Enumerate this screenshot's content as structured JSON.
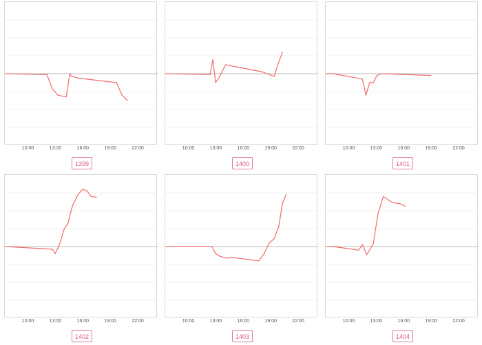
{
  "chart_data": [
    {
      "type": "line",
      "label": "1399",
      "series_color": "#f06a6a",
      "baseline": 0,
      "grid": true,
      "ylim": [
        -4,
        4
      ],
      "x_ticks": [
        "10:00",
        "13:00",
        "16:00",
        "19:00",
        "22:00"
      ],
      "x_tick_values": [
        10,
        13,
        16,
        19,
        22
      ],
      "xlim": [
        7.4,
        24.1
      ],
      "series": [
        {
          "x": [
            7.4,
            12.0,
            12.6,
            13.2,
            14.1,
            14.5,
            14.7,
            15.5,
            19.6,
            20.2,
            20.8
          ],
          "y": [
            0,
            -0.05,
            -0.85,
            -1.2,
            -1.3,
            0,
            -0.15,
            -0.25,
            -0.5,
            -1.2,
            -1.5
          ]
        }
      ]
    },
    {
      "type": "line",
      "label": "1400",
      "series_color": "#f06a6a",
      "baseline": 0,
      "grid": true,
      "ylim": [
        -4,
        4
      ],
      "x_ticks": [
        "10:00",
        "13:00",
        "16:00",
        "19:00",
        "22:00"
      ],
      "x_tick_values": [
        10,
        13,
        16,
        19,
        22
      ],
      "xlim": [
        7.4,
        24.1
      ],
      "series": [
        {
          "x": [
            7.4,
            12.3,
            12.6,
            12.9,
            13.3,
            14.0,
            18.0,
            19.3,
            19.7,
            20.2
          ],
          "y": [
            0,
            -0.05,
            0.8,
            -0.5,
            -0.2,
            0.5,
            0.1,
            -0.15,
            0.5,
            1.2
          ]
        }
      ]
    },
    {
      "type": "line",
      "label": "1401",
      "series_color": "#f06a6a",
      "baseline": 0,
      "grid": true,
      "ylim": [
        -4,
        4
      ],
      "x_ticks": [
        "10:00",
        "13:00",
        "16:00",
        "19:00",
        "22:00"
      ],
      "x_tick_values": [
        10,
        13,
        16,
        19,
        22
      ],
      "xlim": [
        7.4,
        24.1
      ],
      "series": [
        {
          "x": [
            7.4,
            8.2,
            11.4,
            11.8,
            12.2,
            12.6,
            13.0,
            13.5,
            18.9
          ],
          "y": [
            0,
            0,
            -0.3,
            -1.2,
            -0.5,
            -0.5,
            -0.1,
            0,
            -0.1
          ]
        }
      ]
    },
    {
      "type": "line",
      "label": "1402",
      "series_color": "#f06a6a",
      "baseline": 0,
      "grid": true,
      "ylim": [
        -4,
        4
      ],
      "x_ticks": [
        "10:00",
        "13:00",
        "16:00",
        "19:00",
        "22:00"
      ],
      "x_tick_values": [
        10,
        13,
        16,
        19,
        22
      ],
      "xlim": [
        7.4,
        24.1
      ],
      "series": [
        {
          "x": [
            7.4,
            12.6,
            12.9,
            13.4,
            13.9,
            14.3,
            14.8,
            15.4,
            15.9,
            16.4,
            16.8,
            17.4
          ],
          "y": [
            0,
            -0.15,
            -0.4,
            0.15,
            1.0,
            1.3,
            2.3,
            2.9,
            3.2,
            3.1,
            2.8,
            2.75
          ]
        }
      ]
    },
    {
      "type": "line",
      "label": "1403",
      "series_color": "#f06a6a",
      "baseline": 0,
      "grid": true,
      "ylim": [
        -4,
        4
      ],
      "x_ticks": [
        "10:00",
        "13:00",
        "16:00",
        "19:00",
        "22:00"
      ],
      "x_tick_values": [
        10,
        13,
        16,
        19,
        22
      ],
      "xlim": [
        7.4,
        24.1
      ],
      "series": [
        {
          "x": [
            7.4,
            12.5,
            12.9,
            13.4,
            14.1,
            14.6,
            17.6,
            18.2,
            18.7,
            19.3,
            19.8,
            20.2,
            20.6
          ],
          "y": [
            0,
            0,
            -0.4,
            -0.55,
            -0.65,
            -0.6,
            -0.8,
            -0.4,
            0.15,
            0.45,
            1.1,
            2.4,
            2.9
          ]
        }
      ]
    },
    {
      "type": "line",
      "label": "1404",
      "series_color": "#f06a6a",
      "baseline": 0,
      "grid": true,
      "ylim": [
        -4,
        4
      ],
      "x_ticks": [
        "10:00",
        "13:00",
        "16:00",
        "19:00",
        "22:00"
      ],
      "x_tick_values": [
        10,
        13,
        16,
        19,
        22
      ],
      "xlim": [
        7.4,
        24.1
      ],
      "series": [
        {
          "x": [
            7.4,
            8.2,
            11.0,
            11.4,
            11.9,
            12.6,
            13.1,
            13.7,
            14.7,
            15.5,
            16.1
          ],
          "y": [
            0,
            0,
            -0.2,
            0.1,
            -0.45,
            0.15,
            1.8,
            2.8,
            2.45,
            2.4,
            2.25
          ]
        }
      ]
    }
  ]
}
